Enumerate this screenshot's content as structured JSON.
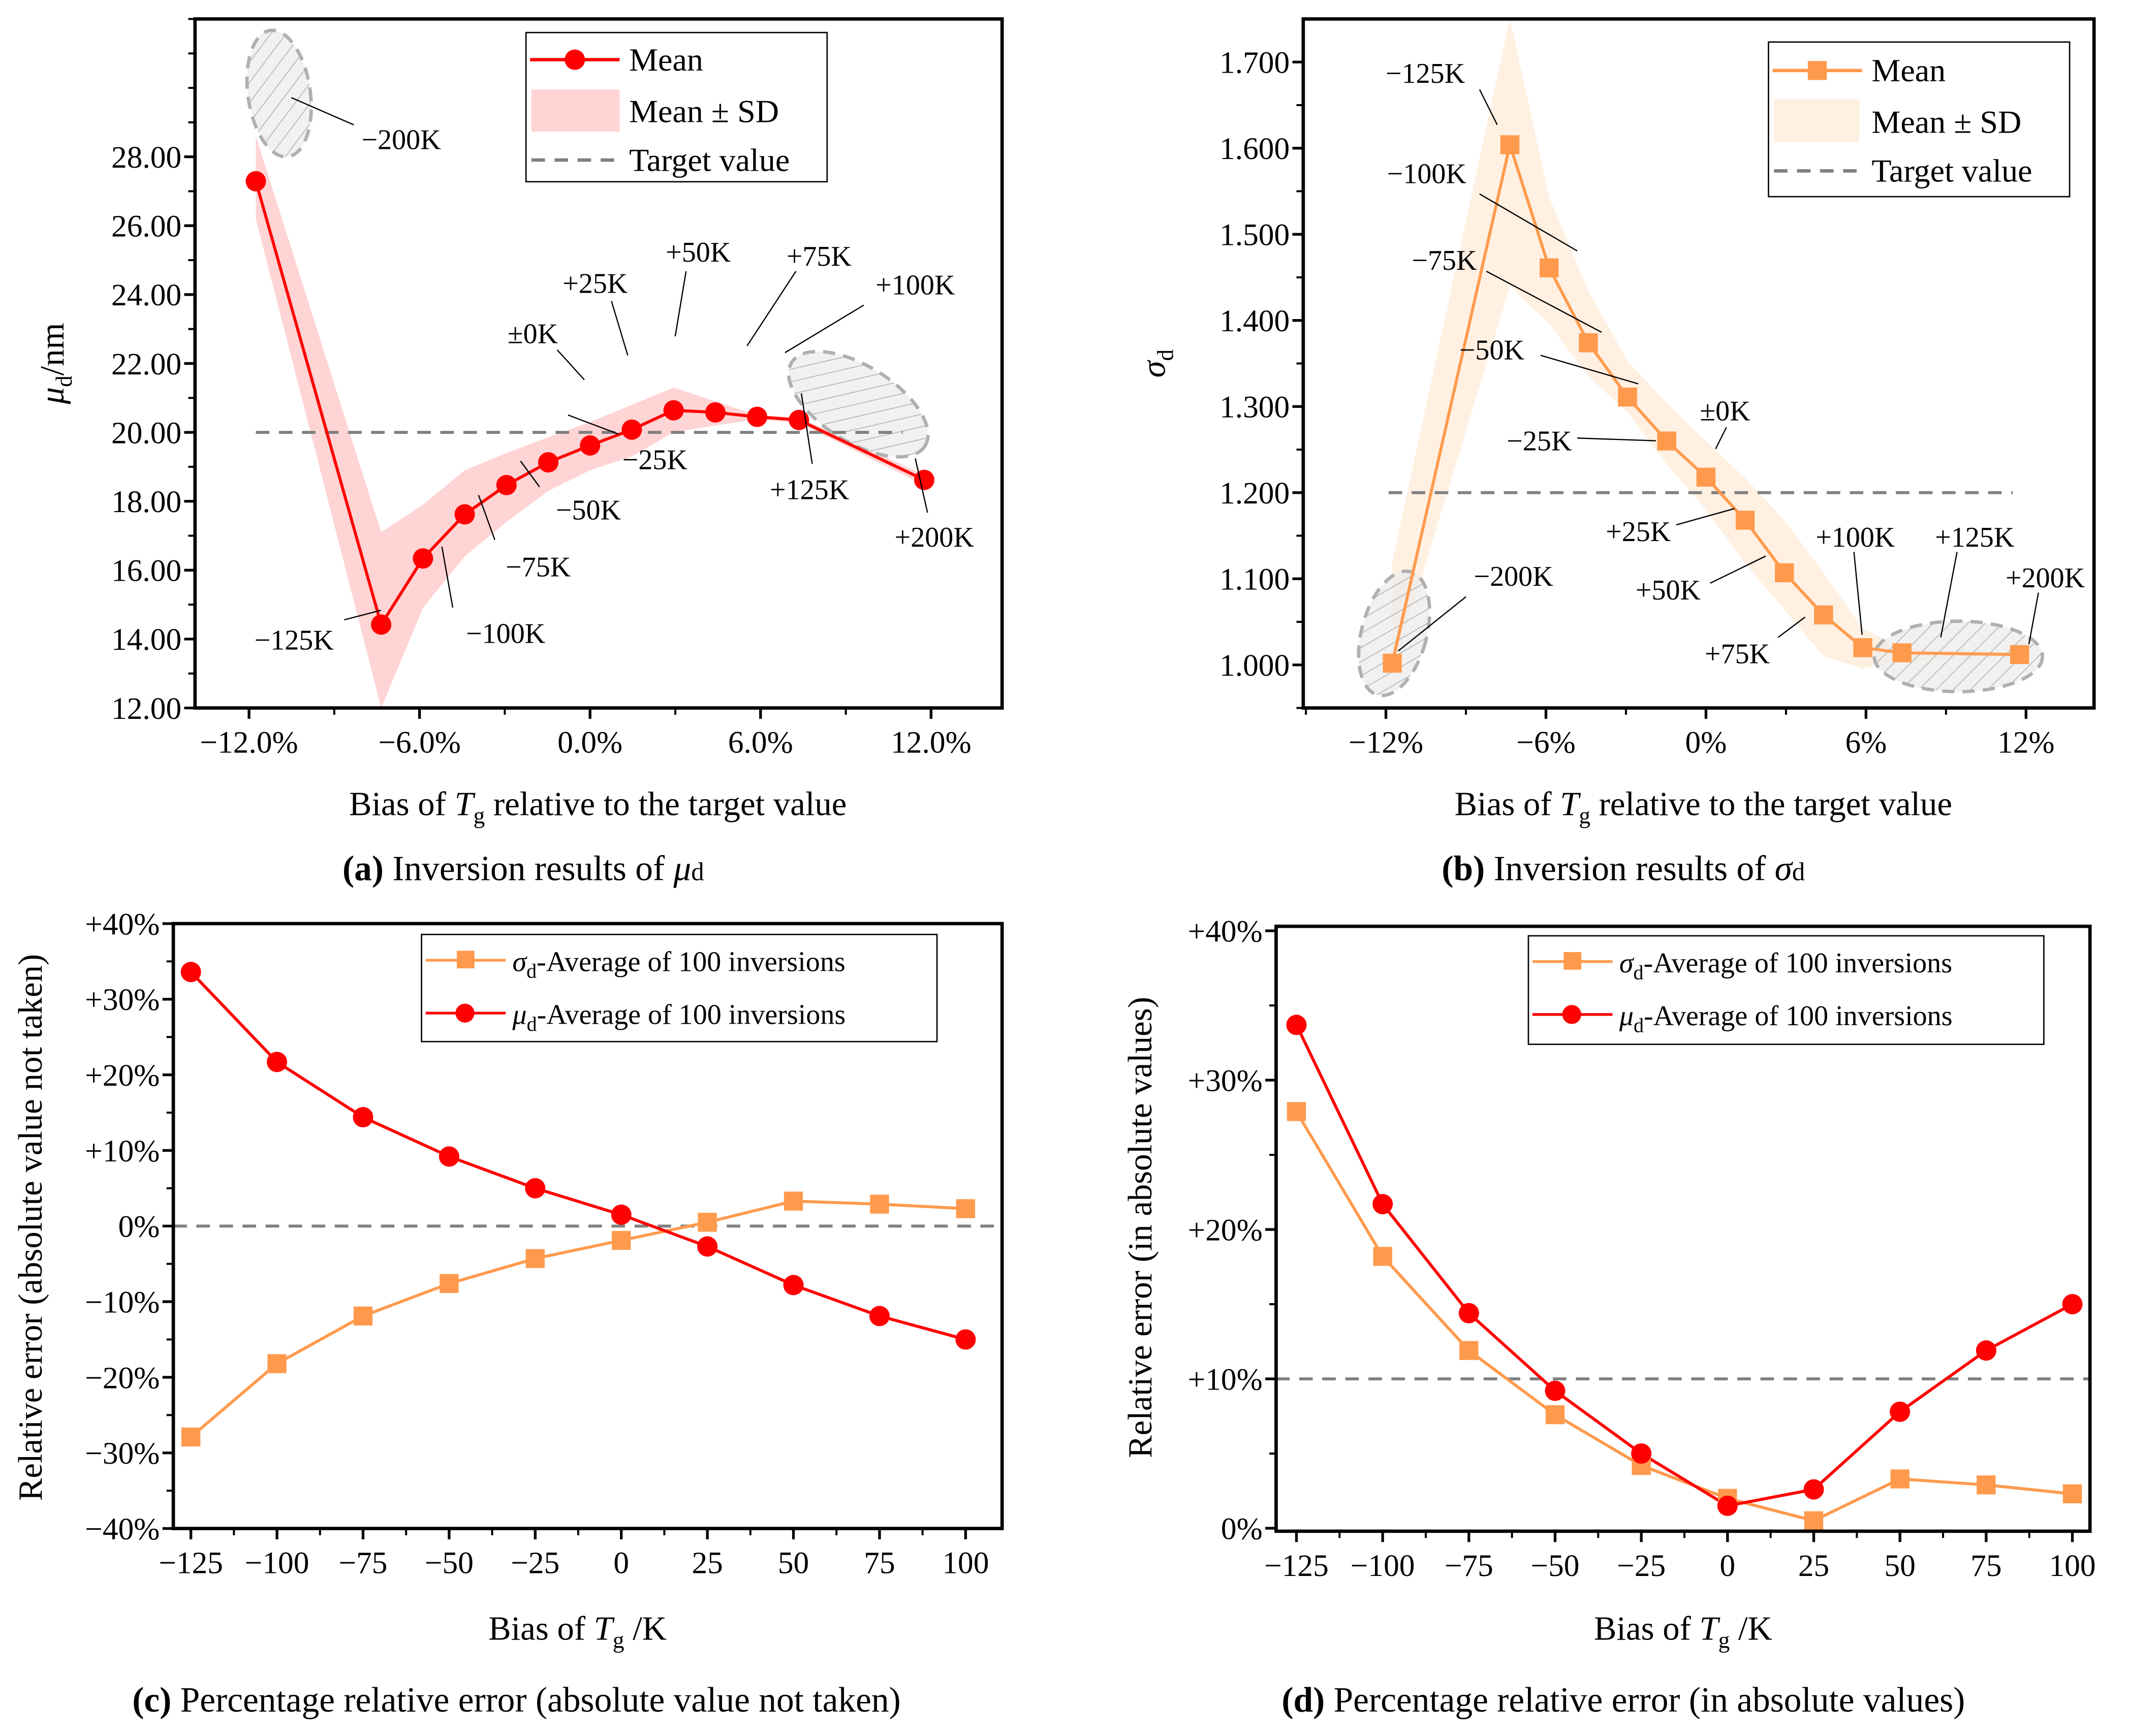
{
  "chart_data": [
    {
      "id": "a",
      "type": "line",
      "xlabel_parts": [
        "Bias of ",
        "T",
        "g",
        " relative to the target value"
      ],
      "ylabel_parts": [
        "μ",
        "d",
        "/nm"
      ],
      "caption": {
        "tag": "(a)",
        "text": " Inversion results of ",
        "symbol": "μ",
        "sub": "d"
      },
      "xlim": [
        -13.9,
        14.5
      ],
      "ylim": [
        12,
        32
      ],
      "xticks": [
        -12,
        -6,
        0,
        6,
        12
      ],
      "xtick_labels": [
        "−12.0%",
        "−6.0%",
        "0.0%",
        "6.0%",
        "12.0%"
      ],
      "yticks": [
        12,
        14,
        16,
        18,
        20,
        22,
        24,
        26,
        28
      ],
      "ytick_labels": [
        "12.00",
        "14.00",
        "16.00",
        "18.00",
        "20.00",
        "22.00",
        "24.00",
        "26.00",
        "28.00"
      ],
      "x": [
        -11.76,
        -7.35,
        -5.88,
        -4.41,
        -2.94,
        -1.47,
        0,
        1.47,
        2.94,
        4.41,
        5.88,
        7.35,
        11.76
      ],
      "point_labels": [
        "−200K",
        "−125K",
        "−100K",
        "−75K",
        "−50K",
        "−25K",
        "±0K",
        "+25K",
        "+50K",
        "+75K",
        "+100K",
        "+125K",
        "+200K"
      ],
      "series": [
        {
          "name": "Mean",
          "marker": "circle",
          "color": "#ff0000",
          "values": [
            27.29,
            14.42,
            16.34,
            17.62,
            18.47,
            19.13,
            19.62,
            20.08,
            20.64,
            20.58,
            20.45,
            20.36,
            18.62
          ]
        }
      ],
      "band": {
        "name": "Mean ± SD",
        "color": "#ffd4d4",
        "upper": [
          28.6,
          17.1,
          17.9,
          18.9,
          19.4,
          19.86,
          20.3,
          20.8,
          21.3,
          20.9,
          20.5,
          20.44,
          18.76
        ],
        "lower": [
          26.2,
          12.0,
          14.9,
          16.4,
          17.4,
          18.3,
          18.9,
          19.3,
          20.0,
          20.2,
          20.38,
          20.27,
          18.47
        ]
      },
      "target": {
        "name": "Target value",
        "value": 20,
        "color": "#808080"
      },
      "legend": [
        "Mean",
        "Mean ± SD",
        "Target value"
      ],
      "legend_position": "top-right"
    },
    {
      "id": "b",
      "type": "line",
      "xlabel_parts": [
        "Bias of ",
        "T",
        "g",
        " relative to the target value"
      ],
      "ylabel_parts": [
        "σ",
        "d",
        ""
      ],
      "caption": {
        "tag": "(b)",
        "text": " Inversion results of ",
        "symbol": "σ",
        "sub": "d"
      },
      "xlim": [
        -15.1,
        14.55
      ],
      "ylim": [
        0.95,
        1.75
      ],
      "xticks": [
        -12,
        -6,
        0,
        6,
        12
      ],
      "xtick_labels": [
        "−12%",
        "−6%",
        "0%",
        "6%",
        "12%"
      ],
      "yticks": [
        1.0,
        1.1,
        1.2,
        1.3,
        1.4,
        1.5,
        1.6,
        1.7
      ],
      "ytick_labels": [
        "1.000",
        "1.100",
        "1.200",
        "1.300",
        "1.400",
        "1.500",
        "1.600",
        "1.700"
      ],
      "x": [
        -11.76,
        -7.35,
        -5.88,
        -4.41,
        -2.94,
        -1.47,
        0,
        1.47,
        2.94,
        4.41,
        5.88,
        7.35,
        11.76
      ],
      "point_labels": [
        "−200K",
        "−125K",
        "−100K",
        "−75K",
        "−50K",
        "−25K",
        "±0K",
        "+25K",
        "+50K",
        "+75K",
        "+100K",
        "+125K",
        "+200K"
      ],
      "series": [
        {
          "name": "Mean",
          "marker": "square",
          "color": "#ff9a4d",
          "values": [
            1.002,
            1.604,
            1.461,
            1.374,
            1.311,
            1.26,
            1.218,
            1.168,
            1.107,
            1.058,
            1.02,
            1.014,
            1.012
          ]
        }
      ],
      "band": {
        "name": "Mean ± SD",
        "color": "#fff0e2",
        "upper": [
          1.12,
          1.751,
          1.543,
          1.434,
          1.353,
          1.304,
          1.26,
          1.217,
          1.168,
          1.107,
          1.042,
          1.02,
          1.015
        ],
        "lower": [
          0.99,
          1.44,
          1.396,
          1.335,
          1.293,
          1.233,
          1.18,
          1.118,
          1.064,
          1.01,
          0.996,
          1.005,
          1.008
        ]
      },
      "target": {
        "name": "Target value",
        "value": 1.2,
        "color": "#808080"
      },
      "legend": [
        "Mean",
        "Mean ± SD",
        "Target value"
      ],
      "legend_position": "top-right"
    },
    {
      "id": "c",
      "type": "line",
      "xlabel_parts": [
        "Bias of ",
        "T",
        "g",
        " /K"
      ],
      "ylabel_parts": [
        "Relative error (absolute value not taken)"
      ],
      "caption": {
        "tag": "(c)",
        "text": " Percentage relative error (absolute value not taken)"
      },
      "xlim": [
        -130.1,
        110.6
      ],
      "ylim": [
        -40,
        40
      ],
      "xticks": [
        -125,
        -100,
        -75,
        -50,
        -25,
        0,
        25,
        50,
        75,
        100
      ],
      "xtick_labels": [
        "−125",
        "−100",
        "−75",
        "−50",
        "−25",
        "0",
        "25",
        "50",
        "75",
        "100"
      ],
      "yticks": [
        -40,
        -30,
        -20,
        -10,
        0,
        10,
        20,
        30,
        40
      ],
      "ytick_labels": [
        "−40%",
        "−30%",
        "−20%",
        "−10%",
        "0%",
        "+10%",
        "+20%",
        "+30%",
        "+40%"
      ],
      "x": [
        -125,
        -100,
        -75,
        -50,
        -25,
        0,
        25,
        50,
        75,
        100
      ],
      "series": [
        {
          "name": "σd-Average of 100 inversions",
          "marker": "square",
          "color": "#ff9a4d",
          "values": [
            -27.9,
            -18.2,
            -11.9,
            -7.6,
            -4.3,
            -1.9,
            0.5,
            3.3,
            2.9,
            2.3
          ]
        },
        {
          "name": "μd-Average of 100 inversions",
          "marker": "circle",
          "color": "#ff0000",
          "values": [
            33.6,
            21.7,
            14.4,
            9.2,
            5.0,
            1.5,
            -2.7,
            -7.8,
            -11.9,
            -15.0
          ]
        }
      ],
      "target": {
        "value": 0,
        "color": "#808080"
      },
      "legend": [
        {
          "symbol": "σ",
          "sub": "d",
          "text": "-Average of 100 inversions"
        },
        {
          "symbol": "μ",
          "sub": "d",
          "text": "-Average of 100 inversions"
        }
      ],
      "legend_position": "top-right"
    },
    {
      "id": "d",
      "type": "line",
      "xlabel_parts": [
        "Bias of ",
        "T",
        "g",
        " /K"
      ],
      "ylabel_parts": [
        "Relative error (in absolute values)"
      ],
      "caption": {
        "tag": "(d)",
        "text": " Percentage relative error (in absolute values)"
      },
      "xlim": [
        -130.9,
        105.1
      ],
      "ylim": [
        -0.2,
        40.3
      ],
      "xticks": [
        -125,
        -100,
        -75,
        -50,
        -25,
        0,
        25,
        50,
        75,
        100
      ],
      "xtick_labels": [
        "−125",
        "−100",
        "−75",
        "−50",
        "−25",
        "0",
        "25",
        "50",
        "75",
        "100"
      ],
      "yticks": [
        0,
        10,
        20,
        30,
        40
      ],
      "ytick_labels": [
        "0%",
        "+10%",
        "+20%",
        "+30%",
        "+40%"
      ],
      "x": [
        -125,
        -100,
        -75,
        -50,
        -25,
        0,
        25,
        50,
        75,
        100
      ],
      "series": [
        {
          "name": "σd-Average of 100 inversions",
          "marker": "square",
          "color": "#ff9a4d",
          "values": [
            27.9,
            18.2,
            11.9,
            7.6,
            4.2,
            2.0,
            0.5,
            3.3,
            2.9,
            2.3
          ]
        },
        {
          "name": "μd-Average of 100 inversions",
          "marker": "circle",
          "color": "#ff0000",
          "values": [
            33.7,
            21.7,
            14.4,
            9.2,
            5.0,
            1.5,
            2.6,
            7.8,
            11.9,
            15.0
          ]
        }
      ],
      "target": {
        "value": 10,
        "color": "#808080"
      },
      "legend": [
        {
          "symbol": "σ",
          "sub": "d",
          "text": "-Average of 100 inversions"
        },
        {
          "symbol": "μ",
          "sub": "d",
          "text": "-Average of 100 inversions"
        }
      ],
      "legend_position": "top-right"
    }
  ]
}
